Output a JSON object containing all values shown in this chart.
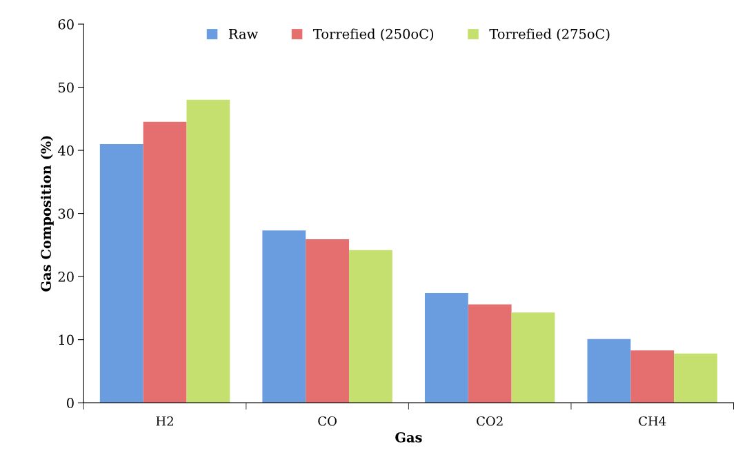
{
  "chart_data": {
    "type": "bar",
    "xlabel": "Gas",
    "ylabel": "Gas Composition (%)",
    "categories": [
      "H2",
      "CO",
      "CO2",
      "CH4"
    ],
    "series": [
      {
        "name": "Raw",
        "color": "#6a9de0",
        "values": [
          41.0,
          27.3,
          17.4,
          10.1
        ]
      },
      {
        "name": "Torrefied (250oC)",
        "color": "#e56f6f",
        "values": [
          44.5,
          25.9,
          15.6,
          8.3
        ]
      },
      {
        "name": "Torrefied (275oC)",
        "color": "#c6e070",
        "values": [
          48.0,
          24.2,
          14.3,
          7.8
        ]
      }
    ],
    "ylim": [
      0,
      60
    ],
    "yticks": [
      0,
      10,
      20,
      30,
      40,
      50,
      60
    ],
    "grid": false,
    "legend": "top"
  }
}
